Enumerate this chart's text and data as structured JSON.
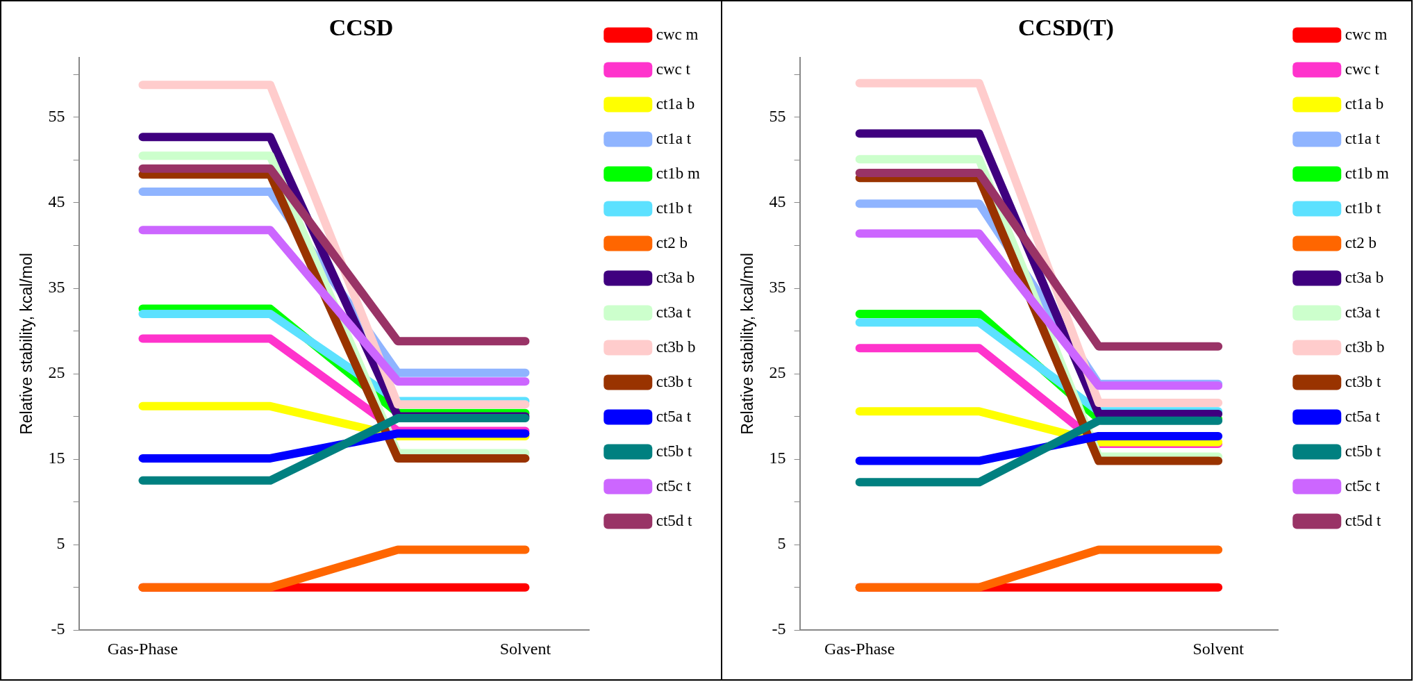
{
  "chart_data": [
    {
      "type": "line",
      "title": "CCSD",
      "ylabel": "Relative stability, kcal/mol",
      "categories": [
        "Gas-Phase",
        null,
        null,
        "Solvent"
      ],
      "ylim": [
        -5,
        62
      ],
      "yticks": [
        -5,
        {
          "value": 0,
          "label": null
        },
        5,
        {
          "value": 10,
          "label": null
        },
        15,
        {
          "value": 20,
          "label": null
        },
        25,
        {
          "value": 30,
          "label": null
        },
        35,
        {
          "value": 40,
          "label": null
        },
        45,
        {
          "value": 50,
          "label": null
        },
        55,
        {
          "value": 60,
          "label": null
        }
      ],
      "grid": false,
      "legend": "right",
      "series": [
        {
          "name": "cwc m",
          "color": "#ff0000",
          "values": [
            0,
            0,
            0,
            0
          ]
        },
        {
          "name": "cwc t",
          "color": "#ff33cc",
          "values": [
            29.1,
            29.1,
            18.3,
            18.3
          ]
        },
        {
          "name": "ct1a b",
          "color": "#ffff00",
          "values": [
            21.2,
            21.2,
            17.7,
            17.7
          ]
        },
        {
          "name": "ct1a t",
          "color": "#8fb4ff",
          "values": [
            46.3,
            46.3,
            25.1,
            25.1
          ]
        },
        {
          "name": "ct1b m",
          "color": "#00ff00",
          "values": [
            32.6,
            32.6,
            20.4,
            20.4
          ]
        },
        {
          "name": "ct1b t",
          "color": "#5ce1ff",
          "values": [
            32.0,
            32.0,
            21.8,
            21.8
          ]
        },
        {
          "name": "ct2 b",
          "color": "#ff6600",
          "values": [
            0,
            0,
            4.4,
            4.4
          ]
        },
        {
          "name": "ct3a b",
          "color": "#3f007f",
          "values": [
            52.7,
            52.7,
            20.0,
            20.0
          ]
        },
        {
          "name": "ct3a t",
          "color": "#ccffcc",
          "values": [
            50.5,
            50.5,
            15.7,
            15.7
          ]
        },
        {
          "name": "ct3b b",
          "color": "#ffcccc",
          "values": [
            58.8,
            58.8,
            21.4,
            21.4
          ]
        },
        {
          "name": "ct3b t",
          "color": "#993300",
          "values": [
            48.3,
            48.3,
            15.1,
            15.1
          ]
        },
        {
          "name": "ct5a t",
          "color": "#0000ff",
          "values": [
            15.1,
            15.1,
            18.0,
            18.0
          ]
        },
        {
          "name": "ct5b t",
          "color": "#008080",
          "values": [
            12.5,
            12.5,
            19.8,
            19.8
          ]
        },
        {
          "name": "ct5c t",
          "color": "#cc66ff",
          "values": [
            41.8,
            41.8,
            24.1,
            24.1
          ]
        },
        {
          "name": "ct5d t",
          "color": "#993366",
          "values": [
            49.0,
            49.0,
            28.8,
            28.8
          ]
        }
      ]
    },
    {
      "type": "line",
      "title": "CCSD(T)",
      "ylabel": "Relative stability, kcal/mol",
      "categories": [
        "Gas-Phase",
        null,
        null,
        "Solvent"
      ],
      "ylim": [
        -5,
        62
      ],
      "yticks": [
        -5,
        {
          "value": 0,
          "label": null
        },
        5,
        {
          "value": 10,
          "label": null
        },
        15,
        {
          "value": 20,
          "label": null
        },
        25,
        {
          "value": 30,
          "label": null
        },
        35,
        {
          "value": 40,
          "label": null
        },
        45,
        {
          "value": 50,
          "label": null
        },
        55,
        {
          "value": 60,
          "label": null
        }
      ],
      "grid": false,
      "legend": "right",
      "series": [
        {
          "name": "cwc m",
          "color": "#ff0000",
          "values": [
            0,
            0,
            0,
            0
          ]
        },
        {
          "name": "cwc t",
          "color": "#ff33cc",
          "values": [
            28.0,
            28.0,
            16.8,
            16.8
          ]
        },
        {
          "name": "ct1a b",
          "color": "#ffff00",
          "values": [
            20.6,
            20.6,
            17.0,
            17.0
          ]
        },
        {
          "name": "ct1a t",
          "color": "#8fb4ff",
          "values": [
            44.9,
            44.9,
            23.8,
            23.8
          ]
        },
        {
          "name": "ct1b m",
          "color": "#00ff00",
          "values": [
            32.0,
            32.0,
            19.7,
            19.7
          ]
        },
        {
          "name": "ct1b t",
          "color": "#5ce1ff",
          "values": [
            31.0,
            31.0,
            20.6,
            20.6
          ]
        },
        {
          "name": "ct2 b",
          "color": "#ff6600",
          "values": [
            0,
            0,
            4.4,
            4.4
          ]
        },
        {
          "name": "ct3a b",
          "color": "#3f007f",
          "values": [
            53.1,
            53.1,
            20.3,
            20.3
          ]
        },
        {
          "name": "ct3a t",
          "color": "#ccffcc",
          "values": [
            50.1,
            50.1,
            15.3,
            15.3
          ]
        },
        {
          "name": "ct3b b",
          "color": "#ffcccc",
          "values": [
            59.0,
            59.0,
            21.6,
            21.6
          ]
        },
        {
          "name": "ct3b t",
          "color": "#993300",
          "values": [
            47.9,
            47.9,
            14.8,
            14.8
          ]
        },
        {
          "name": "ct5a t",
          "color": "#0000ff",
          "values": [
            14.8,
            14.8,
            17.7,
            17.7
          ]
        },
        {
          "name": "ct5b t",
          "color": "#008080",
          "values": [
            12.3,
            12.3,
            19.5,
            19.5
          ]
        },
        {
          "name": "ct5c t",
          "color": "#cc66ff",
          "values": [
            41.4,
            41.4,
            23.6,
            23.6
          ]
        },
        {
          "name": "ct5d t",
          "color": "#993366",
          "values": [
            48.5,
            48.5,
            28.2,
            28.2
          ]
        }
      ]
    }
  ]
}
